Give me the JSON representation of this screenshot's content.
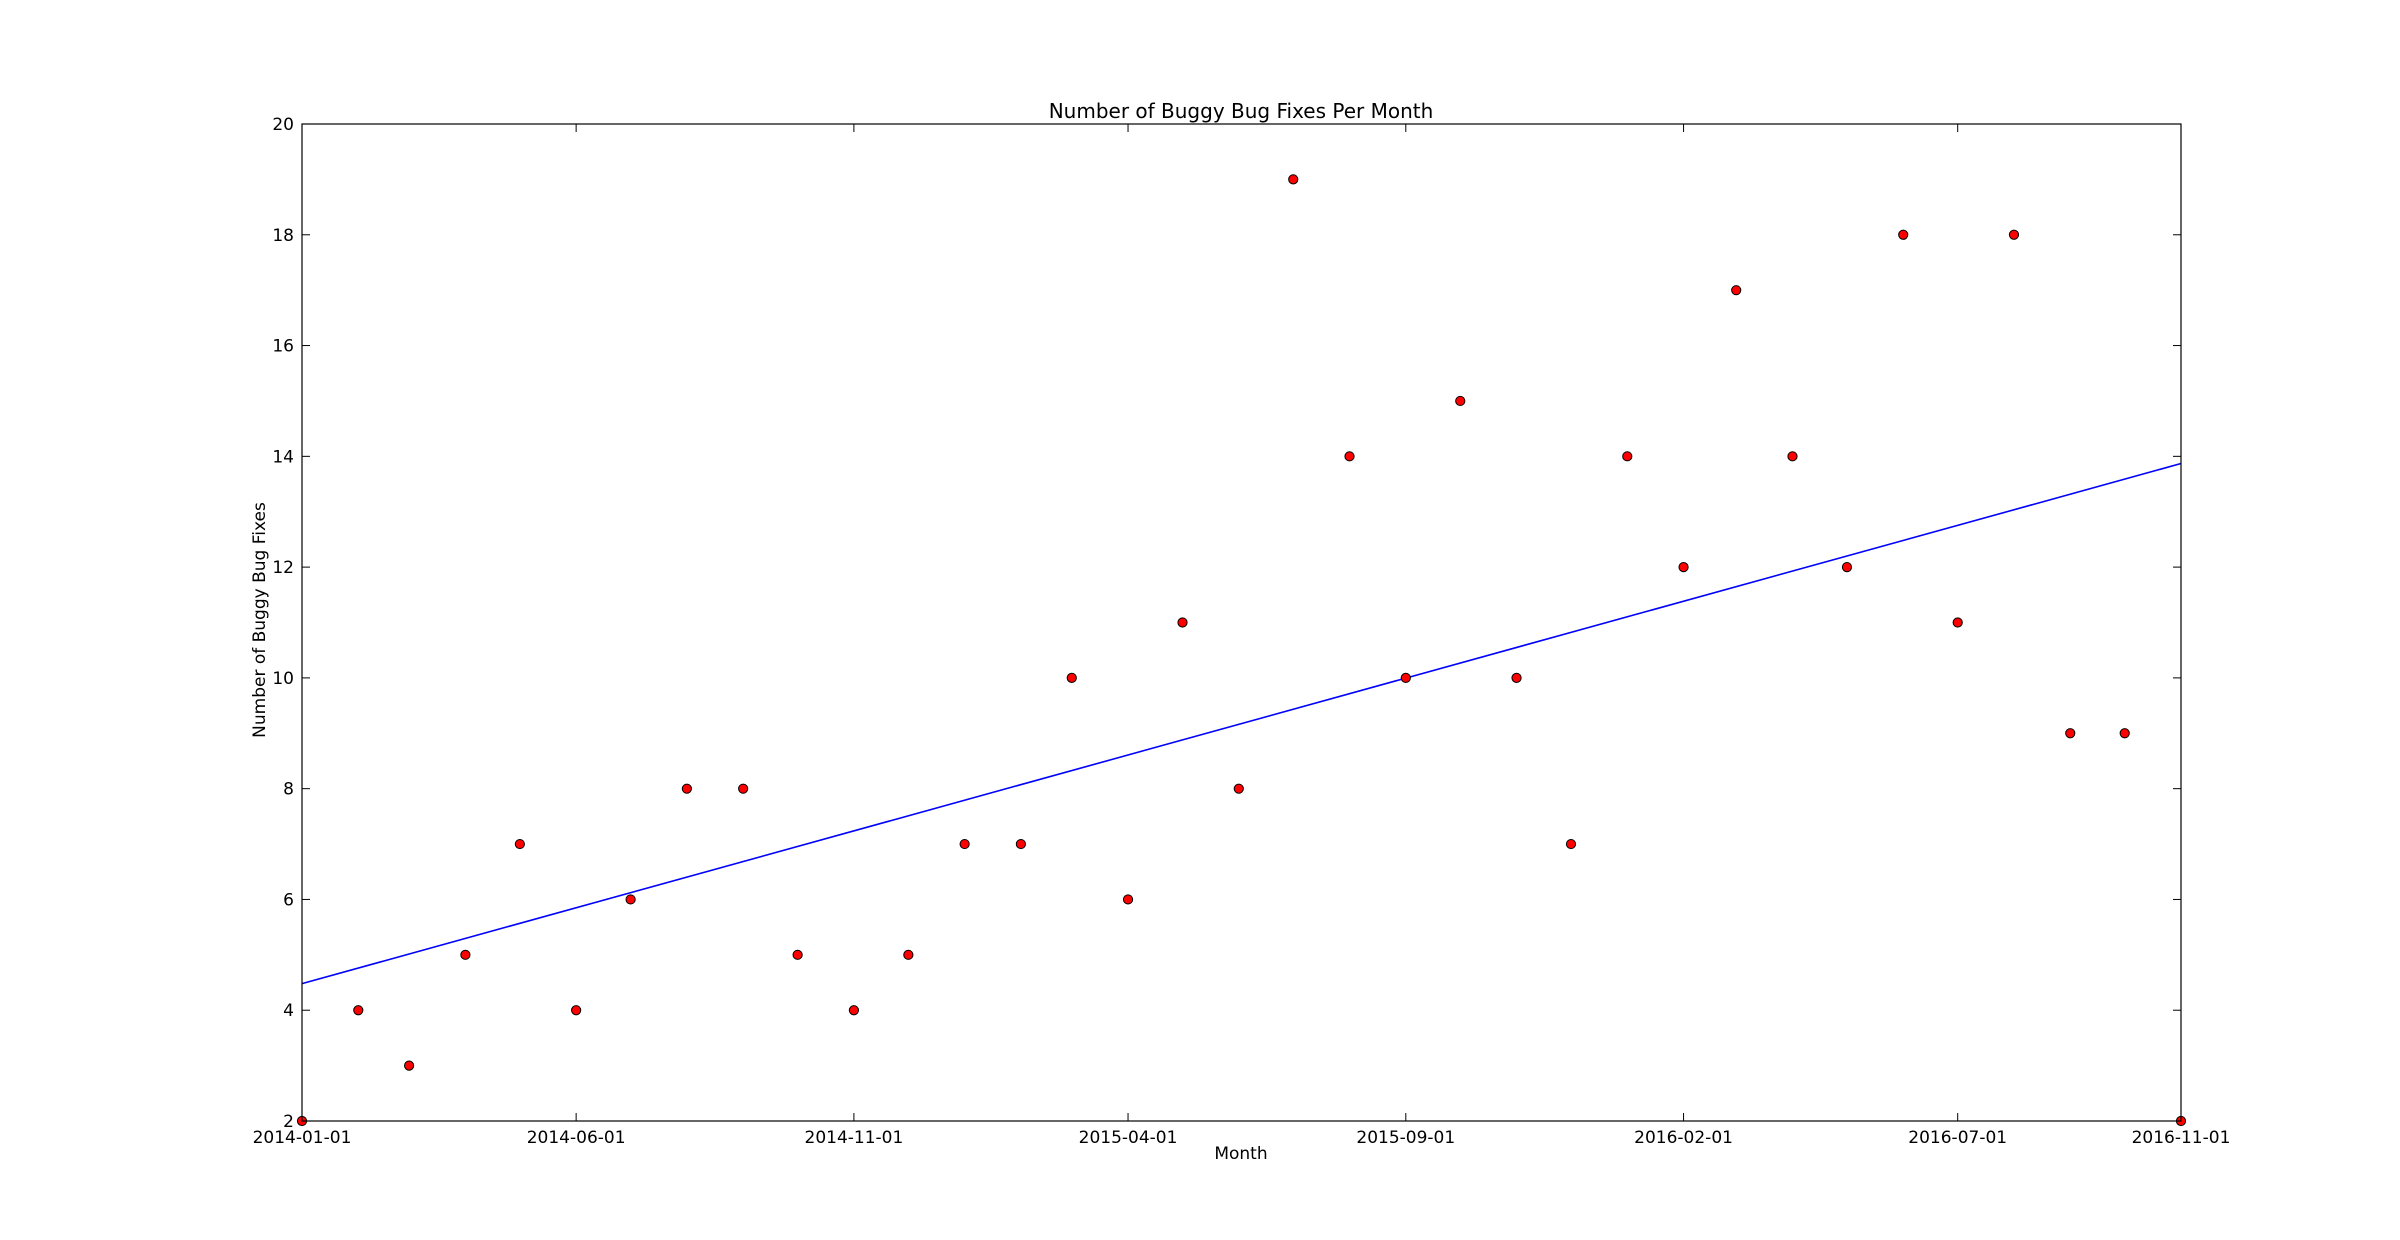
{
  "chart_data": {
    "type": "scatter",
    "title": "Number of Buggy Bug Fixes Per Month",
    "xlabel": "Month",
    "ylabel": "Number of Buggy Bug Fixes",
    "xlim": [
      "2014-01-01",
      "2016-11-01"
    ],
    "ylim": [
      2,
      20
    ],
    "x_ticks": [
      "2014-01-01",
      "2014-06-01",
      "2014-11-01",
      "2015-04-01",
      "2015-09-01",
      "2016-02-01",
      "2016-07-01",
      "2016-11-01"
    ],
    "y_ticks": [
      2,
      4,
      6,
      8,
      10,
      12,
      14,
      16,
      18,
      20
    ],
    "grid": false,
    "series": [
      {
        "type": "scatter",
        "color": "#ff0000",
        "points": [
          {
            "x": "2014-01-01",
            "y": 2
          },
          {
            "x": "2014-02-01",
            "y": 4
          },
          {
            "x": "2014-03-01",
            "y": 3
          },
          {
            "x": "2014-04-01",
            "y": 5
          },
          {
            "x": "2014-05-01",
            "y": 7
          },
          {
            "x": "2014-06-01",
            "y": 4
          },
          {
            "x": "2014-07-01",
            "y": 6
          },
          {
            "x": "2014-08-01",
            "y": 8
          },
          {
            "x": "2014-09-01",
            "y": 8
          },
          {
            "x": "2014-10-01",
            "y": 5
          },
          {
            "x": "2014-11-01",
            "y": 4
          },
          {
            "x": "2014-12-01",
            "y": 5
          },
          {
            "x": "2015-01-01",
            "y": 7
          },
          {
            "x": "2015-02-01",
            "y": 7
          },
          {
            "x": "2015-03-01",
            "y": 10
          },
          {
            "x": "2015-04-01",
            "y": 6
          },
          {
            "x": "2015-05-01",
            "y": 11
          },
          {
            "x": "2015-06-01",
            "y": 8
          },
          {
            "x": "2015-07-01",
            "y": 19
          },
          {
            "x": "2015-08-01",
            "y": 14
          },
          {
            "x": "2015-09-01",
            "y": 10
          },
          {
            "x": "2015-10-01",
            "y": 15
          },
          {
            "x": "2015-11-01",
            "y": 10
          },
          {
            "x": "2015-12-01",
            "y": 7
          },
          {
            "x": "2016-01-01",
            "y": 14
          },
          {
            "x": "2016-02-01",
            "y": 12
          },
          {
            "x": "2016-03-01",
            "y": 17
          },
          {
            "x": "2016-04-01",
            "y": 14
          },
          {
            "x": "2016-05-01",
            "y": 12
          },
          {
            "x": "2016-06-01",
            "y": 18
          },
          {
            "x": "2016-07-01",
            "y": 11
          },
          {
            "x": "2016-08-01",
            "y": 18
          },
          {
            "x": "2016-09-01",
            "y": 9
          },
          {
            "x": "2016-10-01",
            "y": 9
          },
          {
            "x": "2016-11-01",
            "y": 2
          }
        ]
      },
      {
        "type": "line",
        "color": "#0000ff",
        "points": [
          {
            "x": "2014-01-01",
            "y": 4.48
          },
          {
            "x": "2016-11-01",
            "y": 13.87
          }
        ]
      }
    ]
  }
}
